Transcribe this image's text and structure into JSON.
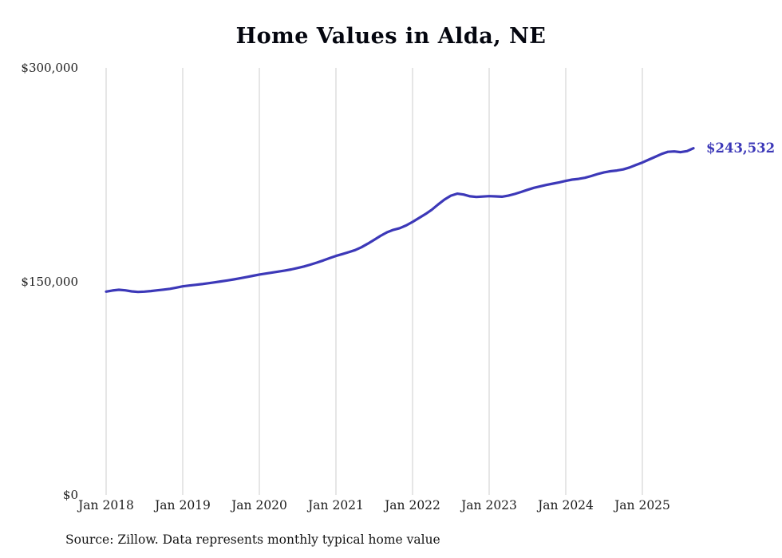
{
  "chart": {
    "title": "Home Values in Alda, NE",
    "source": "Source: Zillow. Data represents monthly typical home value",
    "end_label": "$243,532"
  },
  "chart_data": {
    "type": "line",
    "title": "Home Values in Alda, NE",
    "xlabel": "",
    "ylabel": "",
    "ylim": [
      0,
      300000
    ],
    "grid": "vertical-only",
    "legend": "none",
    "line_color": "#3c38b8",
    "grid_color": "#cccccc",
    "end_value": 243532,
    "end_label": "$243,532",
    "source": "Source: Zillow. Data represents monthly typical home value",
    "y_ticks": [
      {
        "value": 0,
        "label": "$0"
      },
      {
        "value": 150000,
        "label": "$150,000"
      },
      {
        "value": 300000,
        "label": "$300,000"
      }
    ],
    "x_tick_labels": [
      "Jan 2018",
      "Jan 2019",
      "Jan 2020",
      "Jan 2021",
      "Jan 2022",
      "Jan 2023",
      "Jan 2024",
      "Jan 2025"
    ],
    "x_months": [
      "2018-01",
      "2018-02",
      "2018-03",
      "2018-04",
      "2018-05",
      "2018-06",
      "2018-07",
      "2018-08",
      "2018-09",
      "2018-10",
      "2018-11",
      "2018-12",
      "2019-01",
      "2019-02",
      "2019-03",
      "2019-04",
      "2019-05",
      "2019-06",
      "2019-07",
      "2019-08",
      "2019-09",
      "2019-10",
      "2019-11",
      "2019-12",
      "2020-01",
      "2020-02",
      "2020-03",
      "2020-04",
      "2020-05",
      "2020-06",
      "2020-07",
      "2020-08",
      "2020-09",
      "2020-10",
      "2020-11",
      "2020-12",
      "2021-01",
      "2021-02",
      "2021-03",
      "2021-04",
      "2021-05",
      "2021-06",
      "2021-07",
      "2021-08",
      "2021-09",
      "2021-10",
      "2021-11",
      "2021-12",
      "2022-01",
      "2022-02",
      "2022-03",
      "2022-04",
      "2022-05",
      "2022-06",
      "2022-07",
      "2022-08",
      "2022-09",
      "2022-10",
      "2022-11",
      "2022-12",
      "2023-01",
      "2023-02",
      "2023-03",
      "2023-04",
      "2023-05",
      "2023-06",
      "2023-07",
      "2023-08",
      "2023-09",
      "2023-10",
      "2023-11",
      "2023-12",
      "2024-01",
      "2024-02",
      "2024-03",
      "2024-04",
      "2024-05",
      "2024-06",
      "2024-07",
      "2024-08",
      "2024-09",
      "2024-10",
      "2024-11",
      "2024-12",
      "2025-01",
      "2025-02",
      "2025-03",
      "2025-04",
      "2025-05",
      "2025-06",
      "2025-07",
      "2025-08",
      "2025-09"
    ],
    "values": [
      142800,
      143600,
      144100,
      143700,
      143000,
      142600,
      142800,
      143200,
      143700,
      144200,
      144800,
      145600,
      146500,
      147100,
      147600,
      148100,
      148700,
      149300,
      150000,
      150700,
      151400,
      152200,
      153000,
      153900,
      154800,
      155500,
      156200,
      156900,
      157600,
      158400,
      159400,
      160500,
      161800,
      163200,
      164700,
      166300,
      167900,
      169200,
      170500,
      172000,
      174000,
      176500,
      179200,
      182000,
      184500,
      186200,
      187400,
      189300,
      191800,
      194500,
      197200,
      200300,
      204000,
      207500,
      210200,
      211600,
      211000,
      209800,
      209300,
      209600,
      209900,
      209700,
      209500,
      210200,
      211400,
      212800,
      214300,
      215700,
      216800,
      217800,
      218700,
      219600,
      220600,
      221500,
      222000,
      222800,
      224000,
      225400,
      226600,
      227400,
      227900,
      228700,
      230000,
      231800,
      233500,
      235500,
      237500,
      239500,
      241000,
      241300,
      240800,
      241500,
      243532
    ]
  }
}
